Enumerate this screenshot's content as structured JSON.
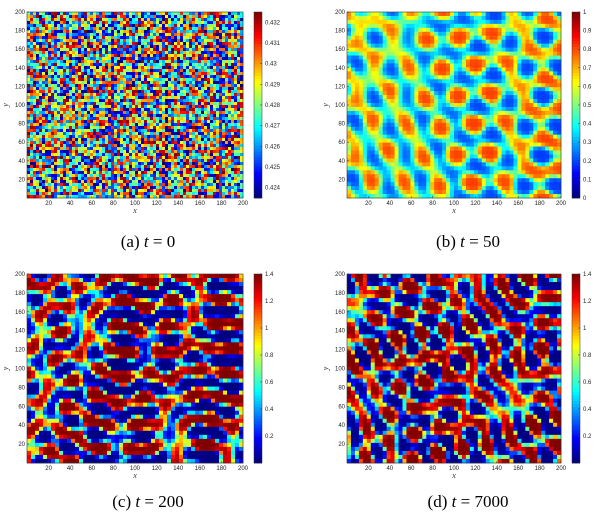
{
  "figure": {
    "panels": [
      {
        "id": "a",
        "caption_prefix": "(a)",
        "caption_var": "t",
        "caption_eq": "= 0",
        "xlabel": "x",
        "ylabel": "y",
        "x_ticks": [
          "20",
          "40",
          "60",
          "80",
          "100",
          "120",
          "140",
          "160",
          "180",
          "200"
        ],
        "y_ticks": [
          "20",
          "40",
          "60",
          "80",
          "100",
          "120",
          "140",
          "160",
          "180",
          "200"
        ],
        "colorbar_ticks": [
          "0.432",
          "0.431",
          "0.43",
          "0.429",
          "0.428",
          "0.427",
          "0.426",
          "0.425",
          "0.424"
        ],
        "pattern": "noise",
        "value_range": [
          0.4235,
          0.4325
        ]
      },
      {
        "id": "b",
        "caption_prefix": "(b)",
        "caption_var": "t",
        "caption_eq": "= 50",
        "xlabel": "x",
        "ylabel": "y",
        "x_ticks": [
          "20",
          "40",
          "60",
          "80",
          "100",
          "120",
          "140",
          "160",
          "180",
          "200"
        ],
        "y_ticks": [
          "20",
          "40",
          "60",
          "80",
          "100",
          "120",
          "140",
          "160",
          "180",
          "200"
        ],
        "colorbar_ticks": [
          "1",
          "0.9",
          "0.8",
          "0.7",
          "0.6",
          "0.5",
          "0.4",
          "0.3",
          "0.2",
          "0.1",
          "0"
        ],
        "pattern": "spots",
        "value_range": [
          0,
          1
        ]
      },
      {
        "id": "c",
        "caption_prefix": "(c)",
        "caption_var": "t",
        "caption_eq": "= 200",
        "xlabel": "x",
        "ylabel": "y",
        "x_ticks": [
          "20",
          "40",
          "60",
          "80",
          "100",
          "120",
          "140",
          "160",
          "180",
          "200"
        ],
        "y_ticks": [
          "20",
          "40",
          "60",
          "80",
          "100",
          "120",
          "140",
          "160",
          "180",
          "200"
        ],
        "colorbar_ticks": [
          "1.4",
          "1.2",
          "1",
          "0.8",
          "0.6",
          "0.4",
          "0.2"
        ],
        "pattern": "stripes",
        "value_range": [
          0,
          1.4
        ]
      },
      {
        "id": "d",
        "caption_prefix": "(d)",
        "caption_var": "t",
        "caption_eq": "= 7000",
        "xlabel": "x",
        "ylabel": "y",
        "x_ticks": [
          "20",
          "40",
          "60",
          "80",
          "100",
          "120",
          "140",
          "160",
          "180",
          "200"
        ],
        "y_ticks": [
          "20",
          "40",
          "60",
          "80",
          "100",
          "120",
          "140",
          "160",
          "180",
          "200"
        ],
        "colorbar_ticks": [
          "1.4",
          "1.2",
          "1",
          "0.8",
          "0.6",
          "0.4",
          "0.2"
        ],
        "pattern": "stripes",
        "value_range": [
          0,
          1.4
        ]
      }
    ],
    "colormap": "jet"
  }
}
